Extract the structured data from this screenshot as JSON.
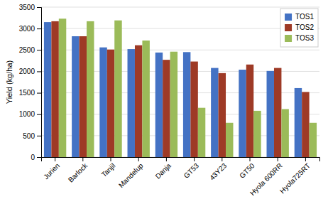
{
  "chart_data": {
    "type": "bar",
    "ylabel": "Yield (kg/ha)",
    "categories": [
      "Jurien",
      "Barlock",
      "Tanjil",
      "Mandelup",
      "Danja",
      "GT53",
      "43Y23",
      "GT50",
      "Hyola 600RR",
      "Hyola725RT"
    ],
    "series": [
      {
        "name": "TOS1",
        "color": "#4472C4",
        "values": [
          3150,
          2820,
          2560,
          2520,
          2440,
          2450,
          2080,
          2040,
          2010,
          1610
        ]
      },
      {
        "name": "TOS2",
        "color": "#9E3A26",
        "values": [
          3170,
          2820,
          2510,
          2610,
          2270,
          2230,
          1960,
          2160,
          2080,
          1520
        ]
      },
      {
        "name": "TOS3",
        "color": "#9BBB59",
        "values": [
          3230,
          3170,
          3190,
          2720,
          2460,
          1150,
          800,
          1080,
          1120,
          800
        ]
      }
    ],
    "ylim": [
      0,
      3500
    ],
    "yticks": [
      0,
      500,
      1000,
      1500,
      2000,
      2500,
      3000,
      3500
    ],
    "grid": true,
    "legend": "upper right"
  }
}
